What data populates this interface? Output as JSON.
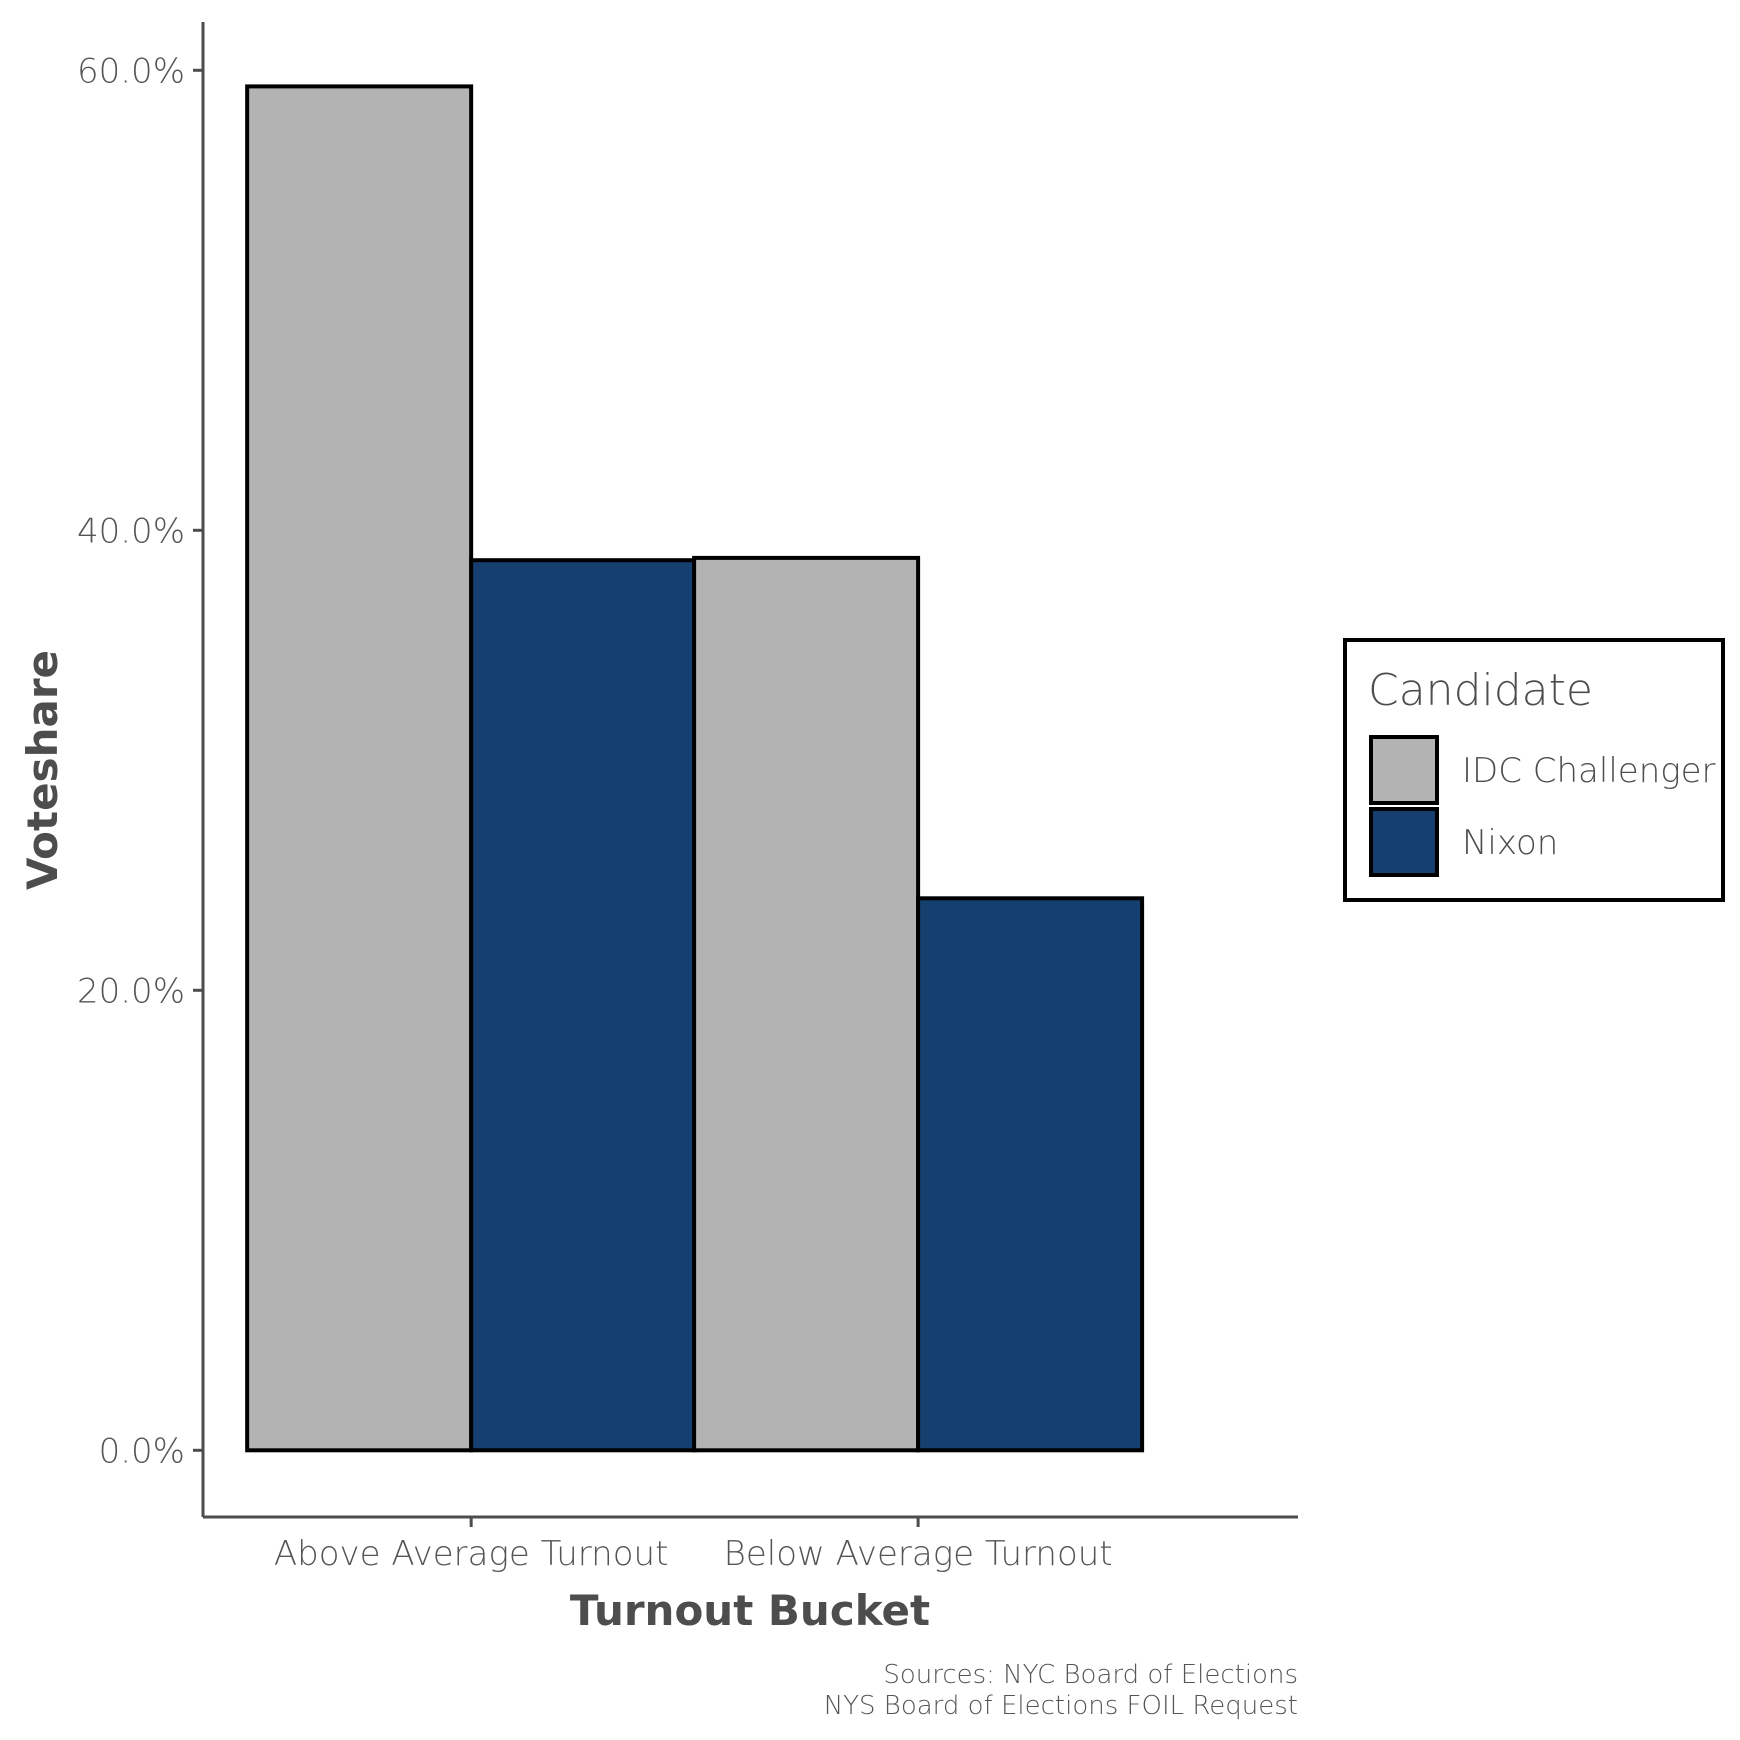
{
  "chart_data": {
    "type": "bar",
    "categories": [
      "Above Average Turnout",
      "Below Average Turnout"
    ],
    "series": [
      {
        "name": "IDC Challenger",
        "values": [
          59.3,
          38.8
        ],
        "color": "#b3b3b3"
      },
      {
        "name": "Nixon",
        "values": [
          38.7,
          24.0
        ],
        "color": "#143f6f"
      }
    ],
    "xlabel": "Turnout Bucket",
    "ylabel": "Voteshare",
    "ylim": [
      -2.9,
      62.1
    ],
    "yticks": [
      0,
      20,
      40,
      60
    ],
    "ytick_labels": [
      "0.0%",
      "20.0%",
      "40.0%",
      "60.0%"
    ],
    "legend": {
      "title": "Candidate",
      "position": "right"
    },
    "grid": false
  },
  "caption": {
    "line1": "Sources: NYC Board of Elections",
    "line2": "NYS Board of Elections FOIL Request"
  }
}
